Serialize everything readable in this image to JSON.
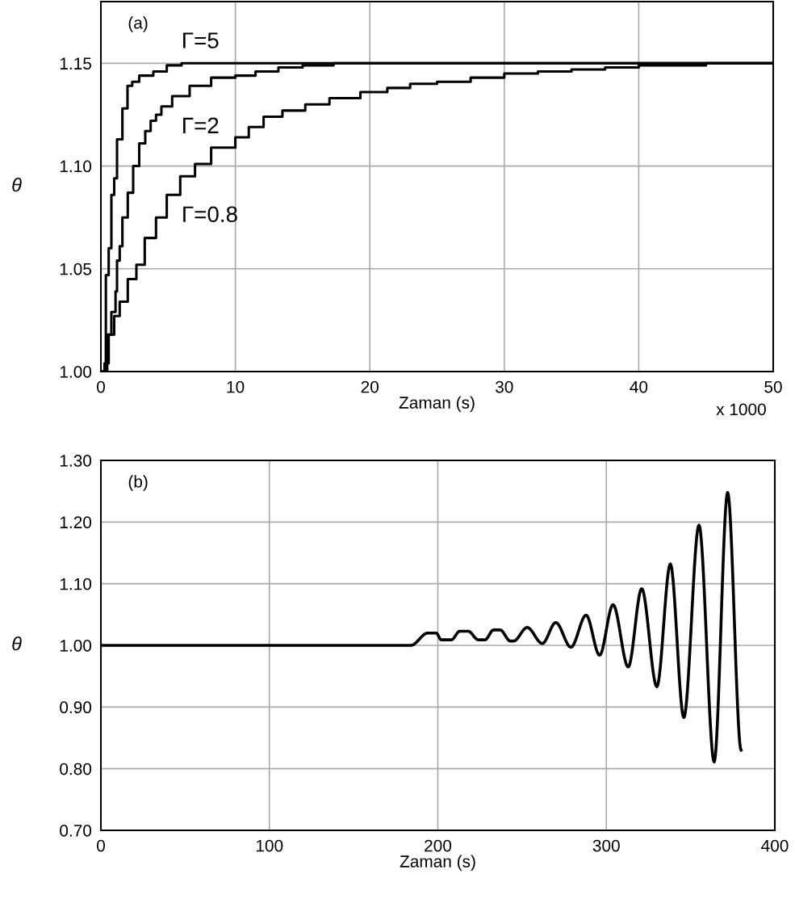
{
  "chart_data": [
    {
      "type": "step",
      "xlabel": "Zaman (s)",
      "ylabel": "θ",
      "xlim": [
        0,
        50
      ],
      "xticks": [
        0,
        10,
        20,
        30,
        40,
        50
      ],
      "ylim": [
        1.0,
        1.18
      ],
      "yticks": [
        {
          "value": 1.0,
          "label": "1.00"
        },
        {
          "value": 1.05,
          "label": "1.05"
        },
        {
          "value": 1.1,
          "label": "1.10"
        },
        {
          "value": 1.15,
          "label": "1.15"
        }
      ],
      "grid": true,
      "legend": false,
      "series": [
        {
          "name": "Γ=5",
          "color": "#000000",
          "x": [
            0,
            0.37,
            0.58,
            0.78,
            0.99,
            1.2,
            1.6,
            1.98,
            2.33,
            2.85,
            3.9,
            4.9,
            6.0,
            50
          ],
          "values": [
            1.0,
            1.047,
            1.06,
            1.086,
            1.094,
            1.113,
            1.128,
            1.139,
            1.141,
            1.144,
            1.146,
            1.149,
            1.15,
            1.15
          ]
        },
        {
          "name": "Γ=2",
          "color": "#000000",
          "x": [
            0,
            0.47,
            0.78,
            1.09,
            1.2,
            1.4,
            1.6,
            2.0,
            2.4,
            2.85,
            3.3,
            3.7,
            4.1,
            4.5,
            5.3,
            6.6,
            8.2,
            10,
            11.5,
            13.2,
            15,
            17.3,
            50
          ],
          "values": [
            1.0,
            1.018,
            1.029,
            1.039,
            1.054,
            1.061,
            1.075,
            1.087,
            1.1,
            1.111,
            1.117,
            1.122,
            1.125,
            1.129,
            1.134,
            1.139,
            1.143,
            1.144,
            1.146,
            1.148,
            1.149,
            1.15,
            1.15
          ]
        },
        {
          "name": "Γ=0.8",
          "color": "#000000",
          "x": [
            0,
            0.27,
            0.58,
            0.99,
            1.4,
            2.0,
            2.64,
            3.26,
            4.1,
            4.9,
            5.9,
            7.0,
            8.2,
            10,
            11,
            12.1,
            13.5,
            15.2,
            17,
            19.3,
            21.3,
            23,
            25,
            27.5,
            30,
            32.5,
            35,
            37.5,
            40,
            42.5,
            45,
            50
          ],
          "values": [
            1.0,
            1.004,
            1.018,
            1.027,
            1.034,
            1.045,
            1.052,
            1.065,
            1.075,
            1.086,
            1.095,
            1.101,
            1.109,
            1.114,
            1.119,
            1.124,
            1.127,
            1.13,
            1.133,
            1.136,
            1.138,
            1.14,
            1.141,
            1.143,
            1.145,
            1.146,
            1.147,
            1.148,
            1.149,
            1.149,
            1.15,
            1.15
          ]
        }
      ],
      "annotations": [
        "(a)",
        "x 1000"
      ]
    },
    {
      "type": "line",
      "xlabel": "Zaman (s)",
      "ylabel": "θ",
      "xlim": [
        0,
        400
      ],
      "xticks": [
        0,
        100,
        200,
        300,
        400
      ],
      "ylim": [
        0.7,
        1.3
      ],
      "yticks": [
        {
          "value": 0.7,
          "label": "0.70"
        },
        {
          "value": 0.8,
          "label": "0.80"
        },
        {
          "value": 0.9,
          "label": "0.90"
        },
        {
          "value": 1.0,
          "label": "1.00"
        },
        {
          "value": 1.1,
          "label": "1.10"
        },
        {
          "value": 1.2,
          "label": "1.20"
        },
        {
          "value": 1.3,
          "label": "1.30"
        }
      ],
      "grid": true,
      "legend": false,
      "series": [
        {
          "color": "#000000",
          "x": [
            0,
            184,
            194,
            199,
            202,
            208,
            213,
            218,
            224,
            228,
            233,
            237,
            243,
            245,
            253,
            262,
            270,
            279,
            288,
            296,
            304,
            313,
            321,
            330,
            338,
            346,
            355,
            364,
            372,
            380
          ],
          "values": [
            1.0,
            1.0,
            1.02,
            1.02,
            1.009,
            1.009,
            1.023,
            1.023,
            1.009,
            1.009,
            1.025,
            1.025,
            1.007,
            1.007,
            1.029,
            1.003,
            1.037,
            0.997,
            1.049,
            0.984,
            1.066,
            0.965,
            1.092,
            0.933,
            1.132,
            0.883,
            1.195,
            0.811,
            1.248,
            0.83
          ]
        }
      ],
      "annotations": [
        "(b)"
      ]
    }
  ]
}
